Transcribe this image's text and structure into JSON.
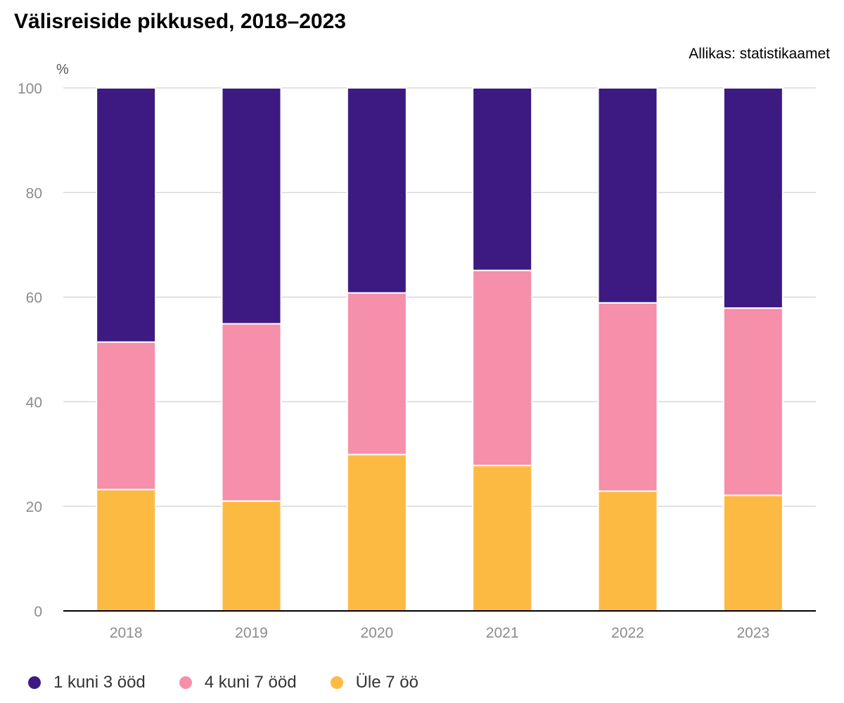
{
  "chart_data": {
    "type": "bar",
    "stacked": true,
    "title": "Välisreiside pikkused, 2018–2023",
    "source": "Allikas: statistikaamet",
    "ylabel": "%",
    "xlabel": "",
    "ylim": [
      0,
      100
    ],
    "yticks": [
      0,
      20,
      40,
      60,
      80,
      100
    ],
    "grid": true,
    "legend_position": "bottom-left",
    "categories": [
      "2018",
      "2019",
      "2020",
      "2021",
      "2022",
      "2023"
    ],
    "series": [
      {
        "name": "Üle 7 öö",
        "color": "#FDBA43",
        "values": [
          23.2,
          21,
          29.9,
          27.8,
          22.9,
          22.1
        ]
      },
      {
        "name": "4 kuni 7 ööd",
        "color": "#F58FAA",
        "values": [
          28.2,
          33.9,
          30.9,
          37.3,
          36,
          35.8
        ]
      },
      {
        "name": "1 kuni 3 ööd",
        "color": "#3D1A82",
        "values": [
          48.6,
          45.1,
          39.2,
          34.9,
          41.1,
          42.1
        ]
      }
    ],
    "legend_order": [
      2,
      1,
      0
    ]
  }
}
